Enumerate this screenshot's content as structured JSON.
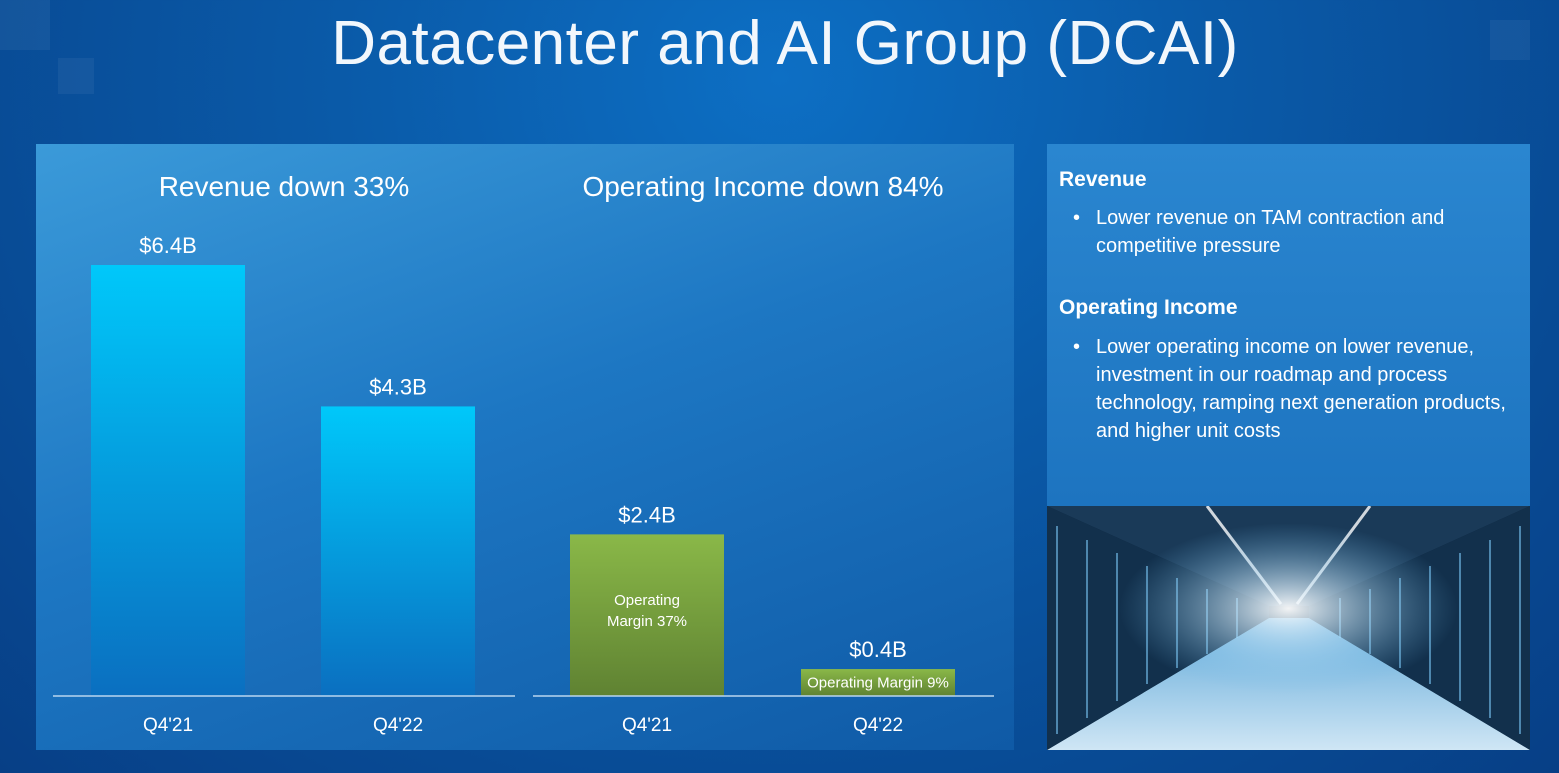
{
  "title": "Datacenter and AI Group (DCAI)",
  "chart_data": [
    {
      "type": "bar",
      "title": "Revenue down 33%",
      "categories": [
        "Q4'21",
        "Q4'22"
      ],
      "values": [
        6.4,
        4.3
      ],
      "value_labels": [
        "$6.4B",
        "$4.3B"
      ],
      "unit": "$B",
      "ylim": [
        0,
        6.4
      ],
      "bar_color": "#00c4f7"
    },
    {
      "type": "bar",
      "title": "Operating Income down 84%",
      "categories": [
        "Q4'21",
        "Q4'22"
      ],
      "values": [
        2.4,
        0.4
      ],
      "value_labels": [
        "$2.4B",
        "$0.4B"
      ],
      "inner_labels": [
        [
          "Operating",
          "Margin 37%"
        ],
        [
          "Operating Margin 9%"
        ]
      ],
      "unit": "$B",
      "ylim": [
        0,
        6.4
      ],
      "bar_color": "#8ab848"
    }
  ],
  "commentary": {
    "revenue_heading": "Revenue",
    "revenue_bullets": [
      "Lower revenue on TAM contraction and competitive pressure"
    ],
    "income_heading": "Operating Income",
    "income_bullets": [
      "Lower operating income on lower revenue, investment in our roadmap and process technology, ramping next generation products, and higher unit costs"
    ]
  },
  "colors": {
    "revenue_top": "#00c8fa",
    "revenue_bottom": "#0a6fc0",
    "income_top": "#8ab848",
    "income_bottom": "#5f8232",
    "axis": "#b9d6ef"
  }
}
